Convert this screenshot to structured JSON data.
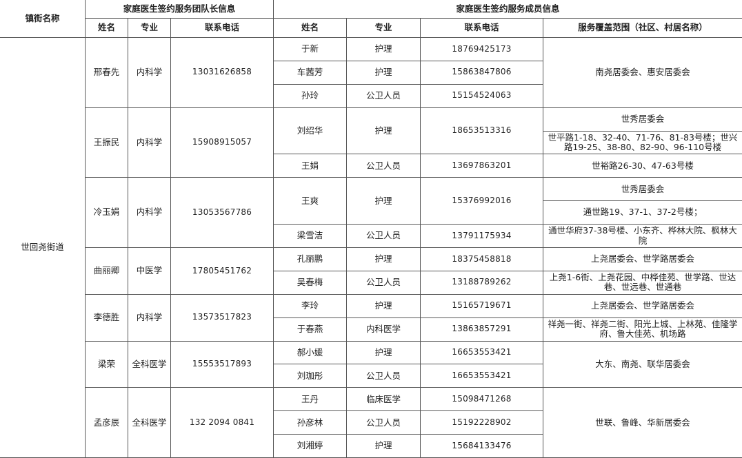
{
  "header": {
    "town_label": "镇街名称",
    "leader_group": "家庭医生签约服务团队长信息",
    "member_group": "家庭医生签约服务成员信息",
    "columns": [
      "姓名",
      "专业",
      "联系电话",
      "姓名",
      "专业",
      "联系电话",
      "服务覆盖范围（社区、村居名称）"
    ]
  },
  "town": "世回尧街道",
  "leaders": [
    {
      "name": "邢春先",
      "specialty": "内科学",
      "phone": "13031626858"
    },
    {
      "name": "王振民",
      "specialty": "内科学",
      "phone": "15908915057"
    },
    {
      "name": "冷玉娟",
      "specialty": "内科学",
      "phone": "13053567786"
    },
    {
      "name": "曲丽卿",
      "specialty": "中医学",
      "phone": "17805451762"
    },
    {
      "name": "李德胜",
      "specialty": "内科学",
      "phone": "13573517823"
    },
    {
      "name": "梁荣",
      "specialty": "全科医学",
      "phone": "15553517893"
    },
    {
      "name": "孟彦辰",
      "specialty": "全科医学",
      "phone": "132 2094 0841"
    }
  ],
  "members": [
    {
      "name": "于新",
      "specialty": "护理",
      "phone": "18769425173"
    },
    {
      "name": "车茜芳",
      "specialty": "护理",
      "phone": "15863847806"
    },
    {
      "name": "孙玲",
      "specialty": "公卫人员",
      "phone": "15154524063"
    },
    {
      "name": "刘绍华",
      "specialty": "护理",
      "phone": "18653513316"
    },
    {
      "name": "王娟",
      "specialty": "公卫人员",
      "phone": "13697863201"
    },
    {
      "name": "王爽",
      "specialty": "护理",
      "phone": "15376992016"
    },
    {
      "name": "梁雪洁",
      "specialty": "公卫人员",
      "phone": "13791175934"
    },
    {
      "name": "孔丽鹏",
      "specialty": "护理",
      "phone": "18375458818"
    },
    {
      "name": "吴春梅",
      "specialty": "公卫人员",
      "phone": "13188789262"
    },
    {
      "name": "李玲",
      "specialty": "护理",
      "phone": "15165719671"
    },
    {
      "name": "于春燕",
      "specialty": "内科医学",
      "phone": "13863857291"
    },
    {
      "name": "郝小媛",
      "specialty": "护理",
      "phone": "16653553421"
    },
    {
      "name": "刘珈彤",
      "specialty": "公卫人员",
      "phone": "16653553421"
    },
    {
      "name": "王丹",
      "specialty": "临床医学",
      "phone": "15098471268"
    },
    {
      "name": "孙彦林",
      "specialty": "公卫人员",
      "phone": "15192228902"
    },
    {
      "name": "刘湘婷",
      "specialty": "护理",
      "phone": "15684133476"
    }
  ],
  "services": [
    "南尧居委会、惠安居委会",
    "世秀居委会",
    "世平路1-18、32-40、71-76、81-83号楼；世兴路19-25、38-80、82-90、96-110号楼",
    "世裕路26-30、47-63号楼",
    "世秀居委会",
    "通世路19、37-1、37-2号楼；",
    "通世华府37-38号楼、小东齐、桦林大院、枫林大院",
    "上尧居委会、世学路居委会",
    "上尧1-6街、上尧花园、中桦佳苑、世学路、世达巷、世远巷、世通巷",
    "上尧居委会、世学路居委会",
    "祥尧一街、祥尧二街、阳光上城、上林苑、佳隆学府、鲁大佳苑、机场路",
    "大东、南尧、联华居委会",
    "世联、鲁峰、华新居委会"
  ]
}
